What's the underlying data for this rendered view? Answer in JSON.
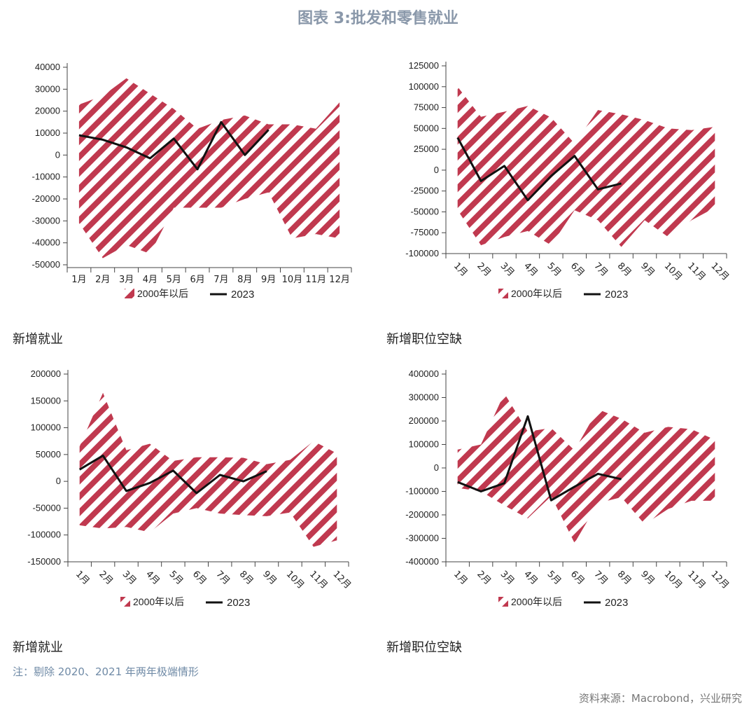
{
  "page": {
    "title": "图表 3:批发和零售就业",
    "note": "注：剔除 2020、2021 年两年极端情形",
    "source": "资料来源：Macrobond，兴业研究",
    "accent_band_color": "#c0394f",
    "line_color": "#111111"
  },
  "chart_data": [
    {
      "type": "area",
      "caption": "新增就业",
      "categories": [
        "1月",
        "2月",
        "3月",
        "4月",
        "5月",
        "6月",
        "7月",
        "8月",
        "9月",
        "10月",
        "11月",
        "12月"
      ],
      "ylim": [
        -50000,
        40000
      ],
      "yticks": [
        -50000,
        -40000,
        -30000,
        -20000,
        -10000,
        0,
        10000,
        20000,
        30000,
        40000
      ],
      "xlabel_rotation": 0,
      "band": {
        "name": "2000年以后",
        "upper": [
          23000,
          27000,
          35000,
          28000,
          21000,
          12000,
          16000,
          18000,
          14000,
          14000,
          12000,
          24000
        ],
        "lower": [
          -31000,
          -47000,
          -41000,
          -45000,
          -24000,
          -24000,
          -24000,
          -20000,
          -17000,
          -38000,
          -36000,
          -38000
        ]
      },
      "series": [
        {
          "name": "2023",
          "values": [
            9000,
            7000,
            3500,
            -1500,
            7500,
            -6500,
            15000,
            0,
            11500,
            null,
            null,
            null
          ]
        }
      ],
      "legend": [
        "2000年以后",
        "2023"
      ]
    },
    {
      "type": "area",
      "caption": "新增职位空缺",
      "categories": [
        "1月",
        "2月",
        "3月",
        "4月",
        "5月",
        "6月",
        "7月",
        "8月",
        "9月",
        "10月",
        "11月",
        "12月"
      ],
      "ylim": [
        -100000,
        125000
      ],
      "yticks": [
        -100000,
        -75000,
        -50000,
        -25000,
        0,
        25000,
        50000,
        75000,
        100000,
        125000
      ],
      "xlabel_rotation": 45,
      "band": {
        "name": "2000年以后",
        "upper": [
          100000,
          64000,
          70000,
          77000,
          63000,
          32000,
          72000,
          67000,
          60000,
          50000,
          48000,
          52000
        ],
        "lower": [
          -48000,
          -90000,
          -80000,
          -73000,
          -90000,
          -48000,
          -60000,
          -92000,
          -60000,
          -80000,
          -60000,
          -45000
        ]
      },
      "series": [
        {
          "name": "2023",
          "values": [
            39000,
            -13000,
            5000,
            -36000,
            -7000,
            17000,
            -23000,
            -16000,
            null,
            null,
            null,
            null
          ]
        }
      ],
      "legend": [
        "2000年以后",
        "2023"
      ]
    },
    {
      "type": "area",
      "caption": "新增就业",
      "categories": [
        "1月",
        "2月",
        "3月",
        "4月",
        "5月",
        "6月",
        "7月",
        "8月",
        "9月",
        "10月",
        "11月",
        "12月"
      ],
      "ylim": [
        -150000,
        200000
      ],
      "yticks": [
        -150000,
        -100000,
        -50000,
        0,
        50000,
        100000,
        150000,
        200000
      ],
      "xlabel_rotation": 45,
      "band": {
        "name": "2000年以后",
        "upper": [
          65000,
          165000,
          58000,
          70000,
          38000,
          45000,
          45000,
          44000,
          32000,
          40000,
          75000,
          52000
        ],
        "lower": [
          -82000,
          -88000,
          -85000,
          -95000,
          -60000,
          -50000,
          -60000,
          -63000,
          -65000,
          -58000,
          -122000,
          -110000
        ]
      },
      "series": [
        {
          "name": "2023",
          "values": [
            22000,
            48000,
            -18000,
            -3000,
            20000,
            -22000,
            12000,
            0,
            19000,
            null,
            null,
            null
          ]
        }
      ],
      "legend": [
        "2000年以后",
        "2023"
      ]
    },
    {
      "type": "area",
      "caption": "新增职位空缺",
      "categories": [
        "1月",
        "2月",
        "3月",
        "4月",
        "5月",
        "6月",
        "7月",
        "8月",
        "9月",
        "10月",
        "11月",
        "12月"
      ],
      "ylim": [
        -400000,
        400000
      ],
      "yticks": [
        -400000,
        -300000,
        -200000,
        -100000,
        0,
        100000,
        200000,
        300000,
        400000
      ],
      "xlabel_rotation": 45,
      "band": {
        "name": "2000年以后",
        "upper": [
          78000,
          100000,
          318000,
          155000,
          170000,
          75000,
          250000,
          210000,
          150000,
          175000,
          165000,
          120000
        ],
        "lower": [
          -85000,
          -100000,
          -160000,
          -215000,
          -120000,
          -320000,
          -150000,
          -125000,
          -240000,
          -175000,
          -140000,
          -140000
        ]
      },
      "series": [
        {
          "name": "2023",
          "values": [
            -60000,
            -100000,
            -65000,
            220000,
            -138000,
            -80000,
            -25000,
            -48000,
            null,
            null,
            null,
            null
          ]
        }
      ],
      "legend": [
        "2000年以后",
        "2023"
      ]
    }
  ]
}
